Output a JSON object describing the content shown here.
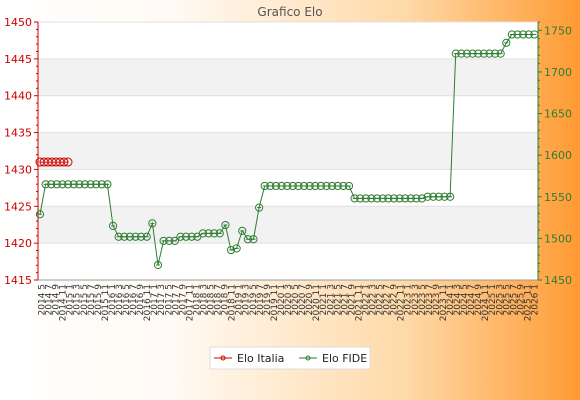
{
  "chart_data": {
    "type": "line",
    "title": "Grafico Elo",
    "legend": {
      "placement": "bottom",
      "entries": [
        "Elo Italia",
        "Elo FIDE"
      ]
    },
    "grid": true,
    "y_left": {
      "ticks": [
        1415,
        1420,
        1425,
        1430,
        1435,
        1440,
        1445,
        1450
      ],
      "ylim": [
        1415,
        1450
      ],
      "color": "#cc0000"
    },
    "y_right": {
      "ticks": [
        1450,
        1500,
        1550,
        1600,
        1650,
        1700,
        1750
      ],
      "ylim": [
        1450,
        1760
      ],
      "color": "#2e7d32"
    },
    "x_tick_labels": [
      "2014 5",
      "2014 7",
      "2014 9",
      "2014 11",
      "2015 1",
      "2015 3",
      "2015 5",
      "2015 7",
      "2015 9",
      "2015 11",
      "2016 1",
      "2016 3",
      "2016 5",
      "2016 7",
      "2016 9",
      "2016 11",
      "2017 1",
      "2017 3",
      "2017 5",
      "2017 7",
      "2017 9",
      "2017 11",
      "2018 1",
      "2018 3",
      "2018 5",
      "2018 7",
      "2018 9",
      "2018 11",
      "2019 1",
      "2019 3",
      "2019 5",
      "2019 7",
      "2019 9",
      "2019 11",
      "2020 1",
      "2020 3",
      "2020 5",
      "2020 7",
      "2020 9",
      "2020 11",
      "2021 1",
      "2021 3",
      "2021 5",
      "2021 7",
      "2021 9",
      "2021 11",
      "2022 1",
      "2022 3",
      "2022 5",
      "2022 7",
      "2022 9",
      "2022 11",
      "2023 1",
      "2023 3",
      "2023 5",
      "2023 7",
      "2023 9",
      "2023 11",
      "2024 1",
      "2024 3",
      "2024 5",
      "2024 7",
      "2024 9",
      "2024 11",
      "2025 1",
      "2025 3",
      "2025 5",
      "2025 7",
      "2025 9",
      "2025 11",
      "2026 1"
    ],
    "series": [
      {
        "name": "Elo Italia",
        "axis": "left",
        "color": "#cc0000",
        "values": [
          1431,
          1431,
          1431,
          1431,
          1431,
          1431,
          1431,
          1431
        ]
      },
      {
        "name": "Elo FIDE",
        "axis": "right",
        "color": "#2e7d32",
        "values": [
          1529,
          1565,
          1565,
          1565,
          1565,
          1565,
          1565,
          1565,
          1565,
          1565,
          1565,
          1565,
          1565,
          1515,
          1502,
          1502,
          1502,
          1502,
          1502,
          1502,
          1518,
          1468,
          1497,
          1497,
          1497,
          1502,
          1502,
          1502,
          1502,
          1506,
          1506,
          1506,
          1506,
          1516,
          1486,
          1488,
          1509,
          1499,
          1499,
          1537,
          1563,
          1563,
          1563,
          1563,
          1563,
          1563,
          1563,
          1563,
          1563,
          1563,
          1563,
          1563,
          1563,
          1563,
          1563,
          1563,
          1548,
          1548,
          1548,
          1548,
          1548,
          1548,
          1548,
          1548,
          1548,
          1548,
          1548,
          1548,
          1548,
          1550,
          1550,
          1550,
          1550,
          1550,
          1722,
          1722,
          1722,
          1722,
          1722,
          1722,
          1722,
          1722,
          1722,
          1735,
          1745,
          1745,
          1745,
          1745,
          1745
        ]
      }
    ]
  }
}
